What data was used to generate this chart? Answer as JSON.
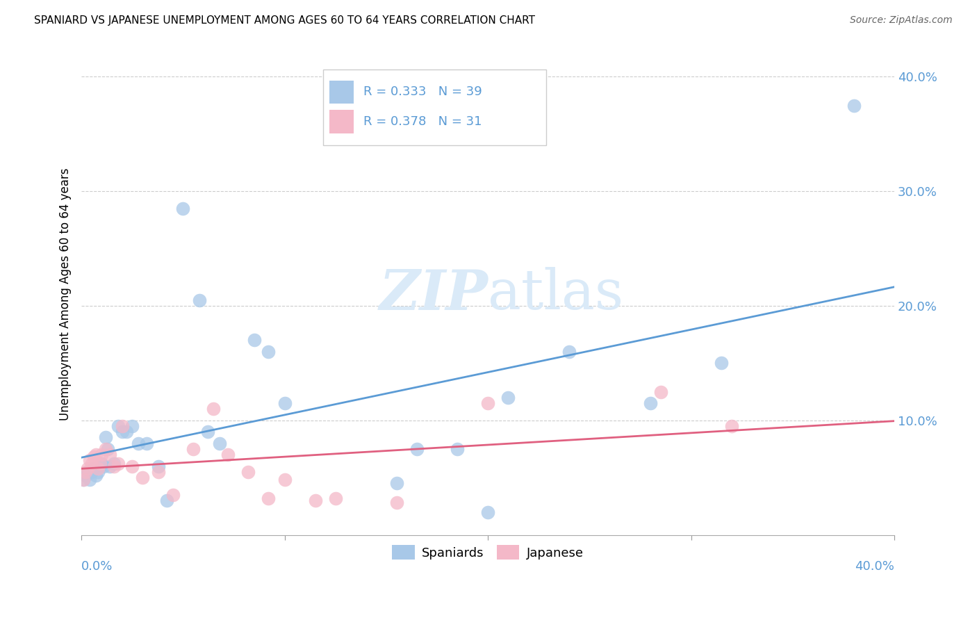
{
  "title": "SPANIARD VS JAPANESE UNEMPLOYMENT AMONG AGES 60 TO 64 YEARS CORRELATION CHART",
  "source": "Source: ZipAtlas.com",
  "ylabel": "Unemployment Among Ages 60 to 64 years",
  "xlim": [
    0,
    0.4
  ],
  "ylim": [
    0,
    0.42
  ],
  "ytick_values": [
    0.1,
    0.2,
    0.3,
    0.4
  ],
  "xtick_values": [
    0.0,
    0.1,
    0.2,
    0.3,
    0.4
  ],
  "legend_r_spaniards": "R = 0.333",
  "legend_n_spaniards": "N = 39",
  "legend_r_japanese": "R = 0.378",
  "legend_n_japanese": "N = 31",
  "spaniards_color": "#a8c8e8",
  "japanese_color": "#f4b8c8",
  "trendline_spaniards_color": "#5b9bd5",
  "trendline_japanese_color": "#e06080",
  "legend_text_color": "#5b9bd5",
  "ytick_color": "#5b9bd5",
  "xtick_color": "#5b9bd5",
  "watermark_color": "#daeaf8",
  "spaniards_x": [
    0.001,
    0.002,
    0.003,
    0.004,
    0.005,
    0.006,
    0.007,
    0.008,
    0.009,
    0.01,
    0.011,
    0.012,
    0.013,
    0.014,
    0.016,
    0.018,
    0.02,
    0.022,
    0.025,
    0.028,
    0.032,
    0.038,
    0.042,
    0.05,
    0.058,
    0.062,
    0.068,
    0.085,
    0.092,
    0.1,
    0.155,
    0.165,
    0.185,
    0.2,
    0.21,
    0.24,
    0.28,
    0.315,
    0.38
  ],
  "spaniards_y": [
    0.048,
    0.052,
    0.055,
    0.048,
    0.055,
    0.058,
    0.052,
    0.055,
    0.06,
    0.062,
    0.06,
    0.085,
    0.075,
    0.06,
    0.062,
    0.095,
    0.09,
    0.09,
    0.095,
    0.08,
    0.08,
    0.06,
    0.03,
    0.285,
    0.205,
    0.09,
    0.08,
    0.17,
    0.16,
    0.115,
    0.045,
    0.075,
    0.075,
    0.02,
    0.12,
    0.16,
    0.115,
    0.15,
    0.375
  ],
  "japanese_x": [
    0.001,
    0.002,
    0.003,
    0.004,
    0.005,
    0.006,
    0.007,
    0.008,
    0.009,
    0.01,
    0.012,
    0.014,
    0.016,
    0.018,
    0.02,
    0.025,
    0.03,
    0.038,
    0.045,
    0.055,
    0.065,
    0.072,
    0.082,
    0.092,
    0.1,
    0.115,
    0.125,
    0.155,
    0.2,
    0.285,
    0.32
  ],
  "japanese_y": [
    0.048,
    0.055,
    0.058,
    0.065,
    0.062,
    0.068,
    0.07,
    0.058,
    0.062,
    0.07,
    0.075,
    0.07,
    0.06,
    0.062,
    0.095,
    0.06,
    0.05,
    0.055,
    0.035,
    0.075,
    0.11,
    0.07,
    0.055,
    0.032,
    0.048,
    0.03,
    0.032,
    0.028,
    0.115,
    0.125,
    0.095
  ]
}
